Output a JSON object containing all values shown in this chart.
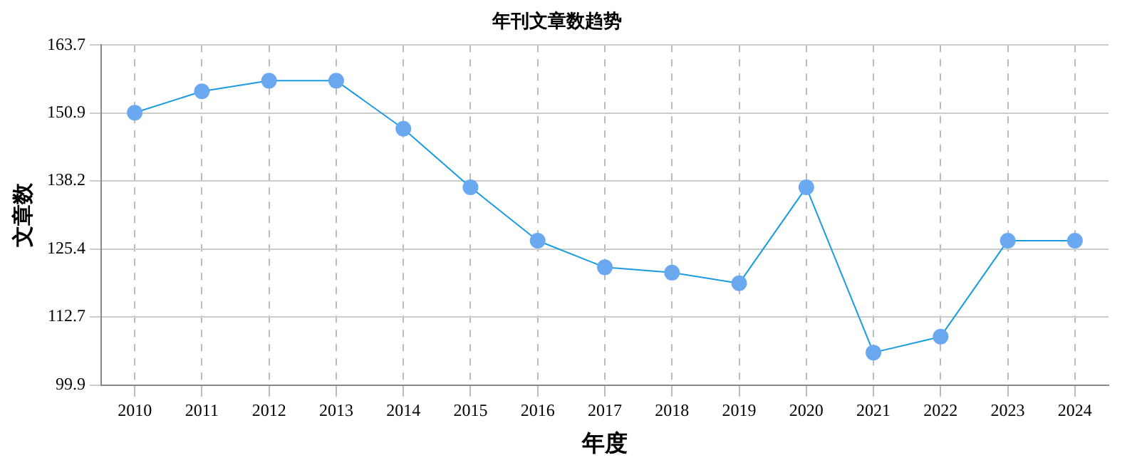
{
  "chart_data": {
    "type": "line",
    "title": "年刊文章数趋势",
    "xlabel": "年度",
    "ylabel": "文章数",
    "categories": [
      "2010",
      "2011",
      "2012",
      "2013",
      "2014",
      "2015",
      "2016",
      "2017",
      "2018",
      "2019",
      "2020",
      "2021",
      "2022",
      "2023",
      "2024"
    ],
    "series": [
      {
        "color": "#1a9be0",
        "values": [
          151,
          155,
          157,
          157,
          148,
          137,
          127,
          122,
          121,
          119,
          137,
          106,
          109,
          127,
          127
        ]
      }
    ],
    "ylim": [
      99.9,
      163.7
    ],
    "yticks": [
      99.9,
      112.7,
      125.4,
      138.2,
      150.9,
      163.7
    ],
    "grid": true,
    "legend": false,
    "marker": "circle",
    "line_style": "solid"
  }
}
